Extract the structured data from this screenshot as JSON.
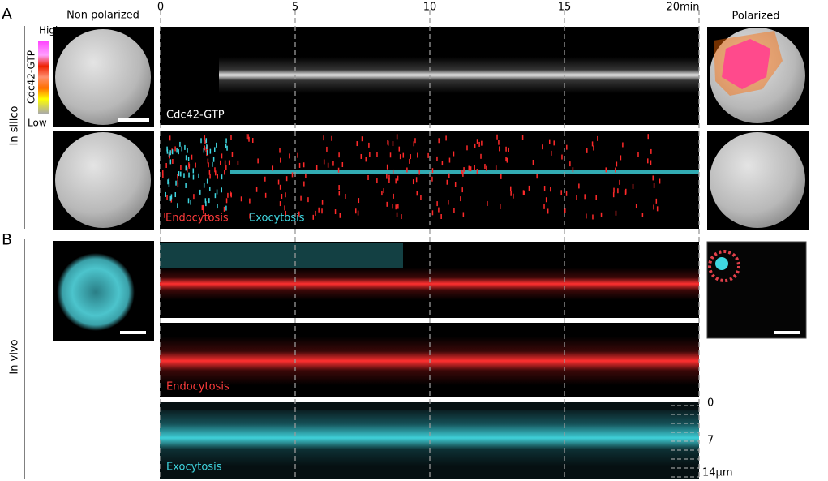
{
  "panels": {
    "a": {
      "label": "A",
      "left_title": "Non polarized",
      "right_title": "Polarized",
      "row_label": "In silico",
      "colorbar": {
        "high": "High",
        "name": "Cdc42-GTP",
        "low": "Low"
      },
      "kymographs": [
        {
          "label": "Cdc42-GTP"
        },
        {
          "labels": [
            "Endocytosis",
            "Exocytosis"
          ]
        }
      ]
    },
    "b": {
      "label": "B",
      "row_label": "In vivo",
      "kymographs": [
        {
          "label": "Endocytosis"
        },
        {
          "label": "Exocytosis"
        }
      ],
      "space_axis": [
        "0",
        "7",
        "14µm"
      ]
    }
  },
  "time_axis": [
    "0",
    "5",
    "10",
    "15",
    "20min"
  ]
}
